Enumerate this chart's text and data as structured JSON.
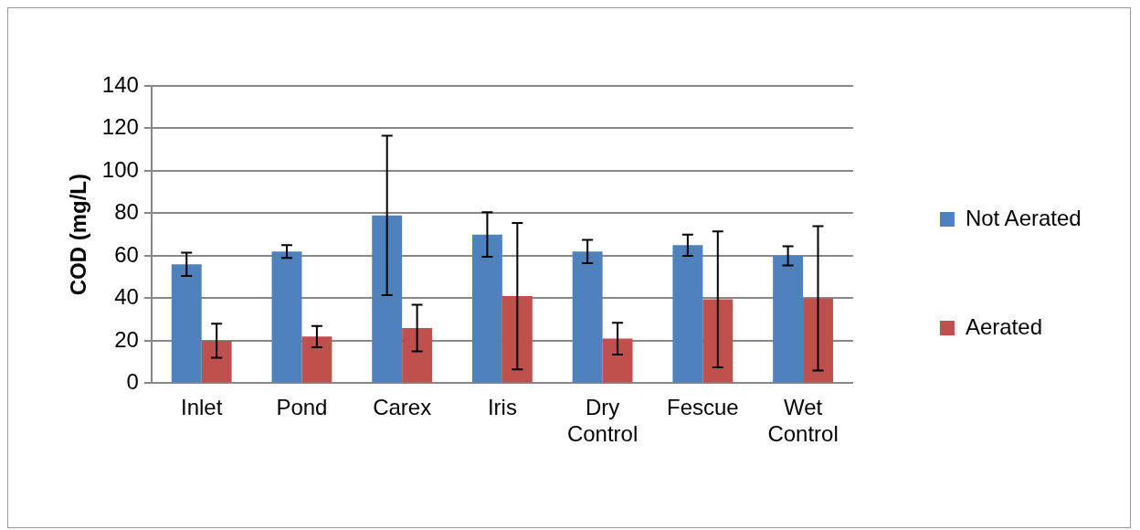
{
  "chart_data": {
    "type": "bar",
    "ylabel": "COD (mg/L)",
    "categories": [
      "Inlet",
      "Pond",
      "Carex",
      "Iris",
      "Dry Control",
      "Fescue",
      "Wet Control"
    ],
    "series": [
      {
        "name": "Not Aerated",
        "color": "#4f81bd",
        "values": [
          56,
          62,
          79,
          70,
          62,
          65,
          60
        ],
        "errors": [
          5.5,
          3,
          37.5,
          10.5,
          5.5,
          5,
          4.5
        ]
      },
      {
        "name": "Aerated",
        "color": "#c0504d",
        "values": [
          20,
          22,
          26,
          41,
          21,
          39.5,
          40
        ],
        "errors": [
          8,
          5,
          11,
          34.5,
          7.5,
          32,
          34
        ]
      }
    ],
    "ylim": [
      0,
      140
    ],
    "yticks": [
      0,
      20,
      40,
      60,
      80,
      100,
      120,
      140
    ],
    "grid": "y",
    "legend": "right"
  }
}
